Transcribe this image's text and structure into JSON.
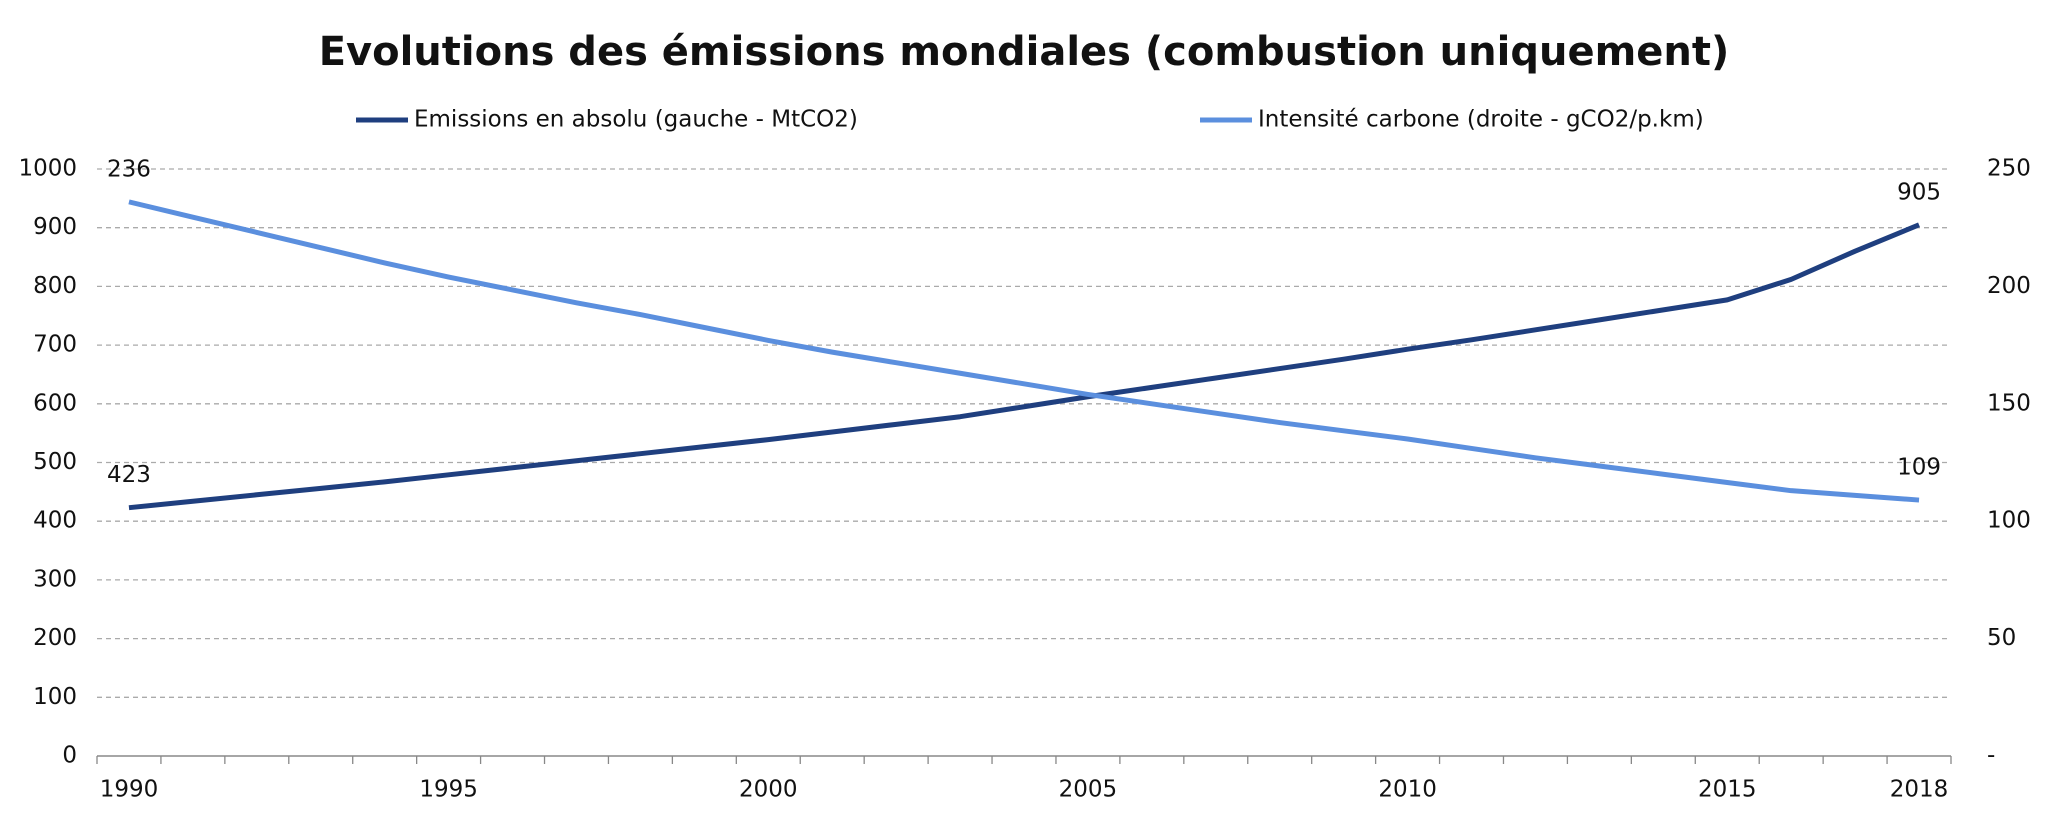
{
  "chart_data": {
    "type": "line",
    "title": "Evolutions des émissions mondiales (combustion uniquement)",
    "categories": [
      "1990",
      null,
      null,
      null,
      null,
      "1995",
      null,
      null,
      null,
      null,
      "2000",
      null,
      null,
      null,
      null,
      "2005",
      null,
      null,
      null,
      null,
      "2010",
      null,
      null,
      null,
      null,
      "2015",
      null,
      null,
      "2018"
    ],
    "series": [
      {
        "name": "Emissions en absolu (gauche - MtCO2)",
        "color": "#1f3f7f",
        "axis": "y",
        "values": [
          423,
          434,
          445,
          456,
          467,
          479,
          491,
          503,
          515,
          527,
          539,
          552,
          565,
          578,
          595,
          612,
          628,
          644,
          660,
          676,
          693,
          709,
          726,
          743,
          760,
          777,
          812,
          860,
          905
        ]
      },
      {
        "name": "Intensité carbone (droite - gCO2/p.km)",
        "color": "#5b8fde",
        "axis": "y2",
        "values": [
          236,
          229.5,
          223,
          216.5,
          210,
          204,
          198.5,
          193,
          188,
          182.5,
          177,
          172,
          167.5,
          163,
          158.5,
          154,
          150,
          146,
          142,
          138.5,
          135,
          131,
          127,
          123.5,
          120,
          116.5,
          113,
          111,
          109
        ]
      }
    ],
    "ylim": [
      0,
      1000
    ],
    "yticks": [
      0,
      100,
      200,
      300,
      400,
      500,
      600,
      700,
      800,
      900,
      1000
    ],
    "y2lim": [
      0,
      250
    ],
    "y2ticks": [
      {
        "value": 0,
        "label": "-"
      },
      50,
      100,
      150,
      200,
      250
    ],
    "grid": true
  }
}
